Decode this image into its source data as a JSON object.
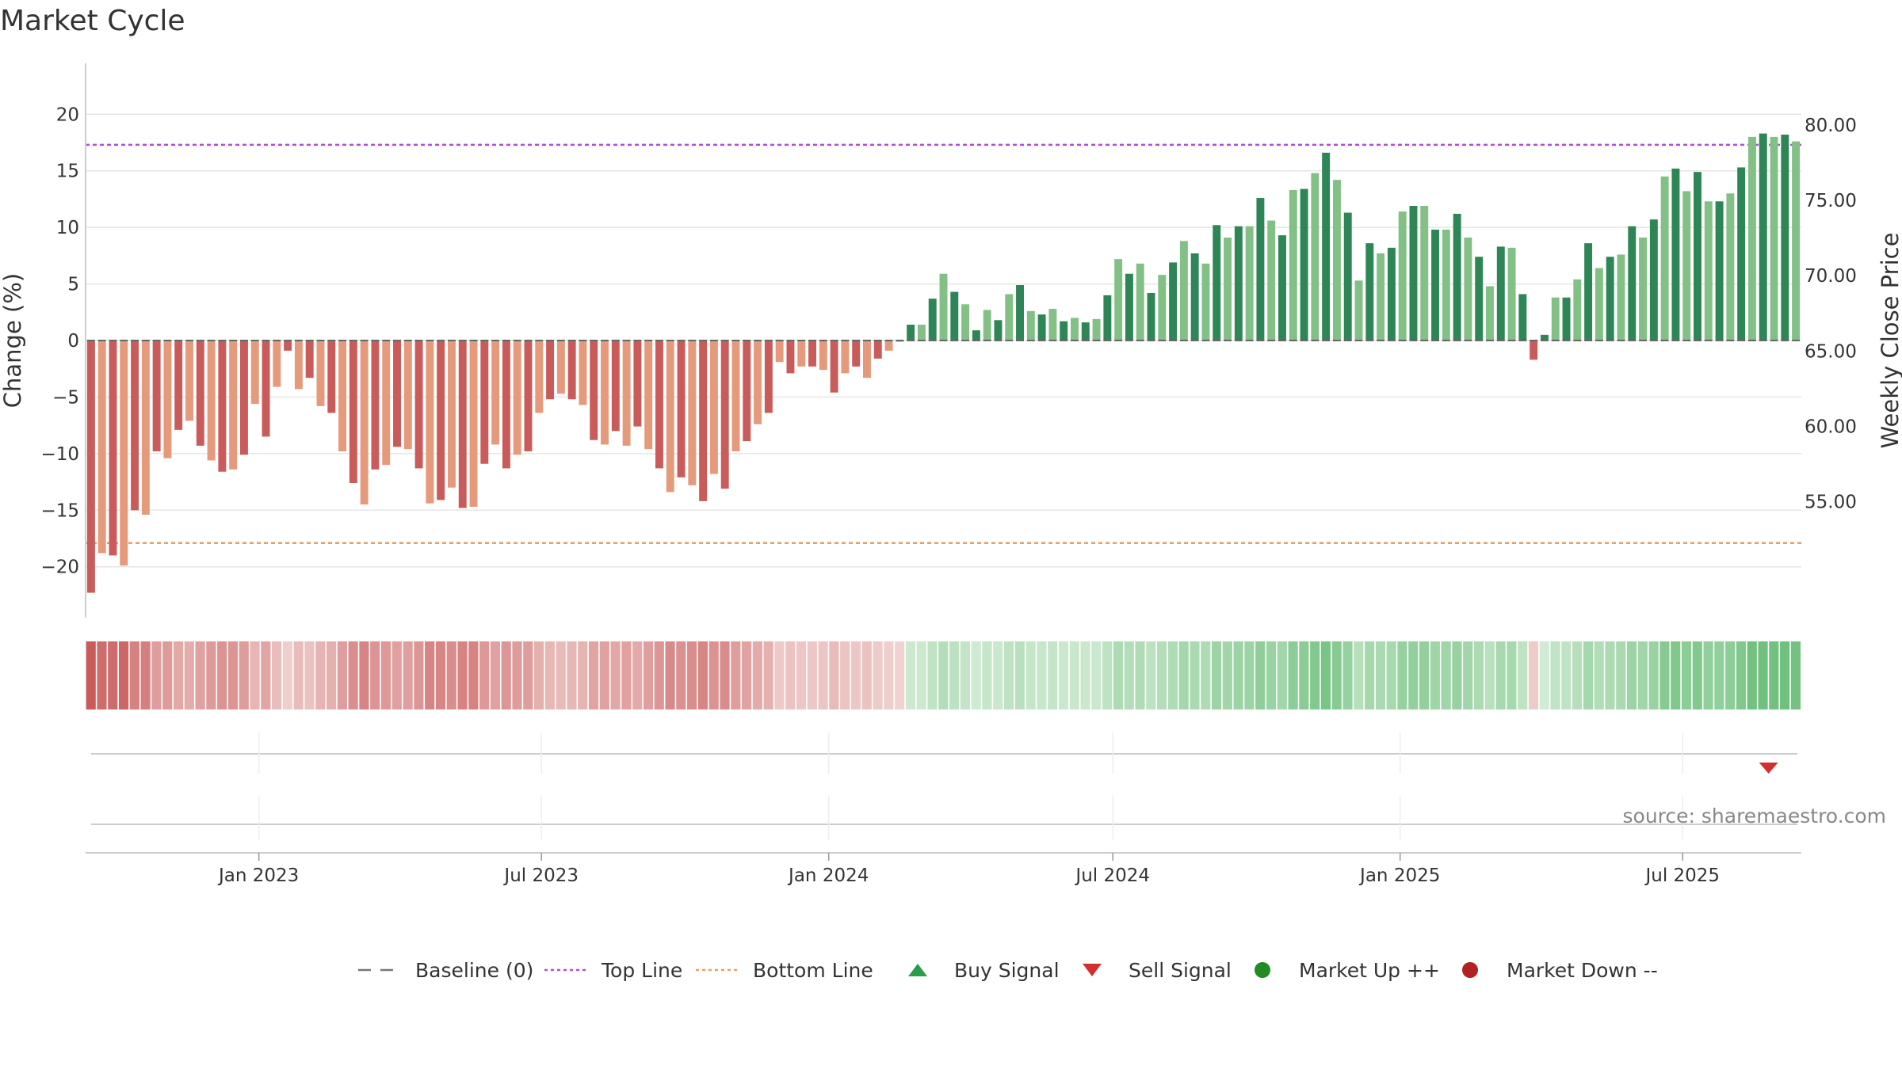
{
  "chart_data": {
    "type": "bar",
    "title": "Market Cycle",
    "ylabel": "Change (%)",
    "y2label": "Weekly Close Price",
    "ylim": [
      -24.5,
      24.5
    ],
    "y_ticks": [
      20,
      15,
      10,
      5,
      0,
      -5,
      -10,
      -15,
      -20
    ],
    "y_tick_labels": [
      "20",
      "15",
      "10",
      "5",
      "0",
      "−5",
      "−10",
      "−15",
      "−20"
    ],
    "y2lim": [
      47.3,
      84.1
    ],
    "y2_ticks": [
      80,
      75,
      70,
      65,
      60,
      55
    ],
    "y2_tick_labels": [
      "80.00",
      "75.00",
      "70.00",
      "65.00",
      "60.00",
      "55.00"
    ],
    "top_line": 17.3,
    "bottom_line": -17.9,
    "x_start": "2022-09-12",
    "x_end": "2025-09-15",
    "weeks": 157,
    "x_tick_dates": [
      "2023-01-01",
      "2023-07-01",
      "2024-01-01",
      "2024-07-01",
      "2025-01-01",
      "2025-07-01"
    ],
    "x_tick_labels": [
      "Jan 2023",
      "Jul 2023",
      "Jan 2024",
      "Jul 2024",
      "Jan 2025",
      "Jul 2025"
    ],
    "sell_signals": [
      "2025-08-25"
    ],
    "buy_signals": [],
    "values": [
      -22.3,
      -18.8,
      -19.0,
      -19.9,
      -15.0,
      -15.4,
      -9.8,
      -10.4,
      -7.9,
      -7.1,
      -9.3,
      -10.6,
      -11.6,
      -11.4,
      -10.1,
      -5.6,
      -8.5,
      -4.1,
      -0.9,
      -4.3,
      -3.3,
      -5.8,
      -6.4,
      -9.8,
      -12.6,
      -14.5,
      -11.4,
      -11.0,
      -9.4,
      -9.6,
      -11.3,
      -14.4,
      -14.1,
      -13.0,
      -14.8,
      -14.7,
      -10.9,
      -9.2,
      -11.3,
      -10.1,
      -9.8,
      -6.4,
      -5.2,
      -4.7,
      -5.2,
      -5.7,
      -8.8,
      -9.2,
      -8.0,
      -9.3,
      -7.6,
      -9.6,
      -11.3,
      -13.4,
      -12.1,
      -12.8,
      -14.2,
      -11.8,
      -13.1,
      -9.8,
      -8.9,
      -7.4,
      -6.4,
      -1.9,
      -2.9,
      -2.3,
      -2.3,
      -2.6,
      -4.6,
      -2.9,
      -2.3,
      -3.3,
      -1.6,
      -0.9,
      -0.1,
      1.4,
      1.4,
      3.7,
      5.9,
      4.3,
      3.2,
      0.9,
      2.7,
      1.8,
      4.1,
      4.9,
      2.6,
      2.3,
      2.8,
      1.7,
      2.0,
      1.6,
      1.9,
      4.0,
      7.2,
      5.9,
      6.8,
      4.2,
      5.8,
      6.9,
      8.8,
      7.7,
      6.8,
      10.2,
      9.1,
      10.1,
      10.1,
      12.6,
      10.6,
      9.3,
      13.3,
      13.4,
      14.8,
      16.6,
      14.2,
      11.3,
      5.3,
      8.6,
      7.7,
      8.2,
      11.4,
      11.9,
      11.9,
      9.8,
      9.8,
      11.2,
      9.1,
      7.4,
      4.8,
      8.3,
      8.2,
      4.1,
      -1.7,
      0.5,
      3.8,
      3.8,
      5.4,
      8.6,
      6.4,
      7.4,
      7.6,
      10.1,
      9.1,
      10.7,
      14.5,
      15.2,
      13.2,
      14.9,
      12.3,
      12.3,
      13.0,
      15.3,
      18.0,
      18.3,
      18.0,
      18.2,
      17.6
    ],
    "legend": [
      {
        "label": "Baseline (0)",
        "symbol": "dash",
        "color": "#777777"
      },
      {
        "label": "Top Line",
        "symbol": "dotted",
        "color": "#b04ddb"
      },
      {
        "label": "Bottom Line",
        "symbol": "dotted",
        "color": "#e8a060"
      },
      {
        "label": "Buy Signal",
        "symbol": "triangle-up",
        "color": "#2a9d48"
      },
      {
        "label": "Sell Signal",
        "symbol": "triangle-down",
        "color": "#d32f2f"
      },
      {
        "label": "Market Up ++",
        "symbol": "circle",
        "color": "#228b22"
      },
      {
        "label": "Market Down --",
        "symbol": "circle",
        "color": "#b22222"
      }
    ],
    "source": "source: sharemaestro.com"
  },
  "colors": {
    "up_dark": "#2e8555",
    "up_light": "#82c085",
    "down_dark": "#c95b5b",
    "down_light": "#e59a7c",
    "top_line": "#b04ddb",
    "bottom_line": "#e8a060",
    "baseline": "#666666",
    "sell": "#d32f2f",
    "buy": "#2a9d48",
    "grid": "#e6e6e6",
    "axis": "#cccccc"
  }
}
